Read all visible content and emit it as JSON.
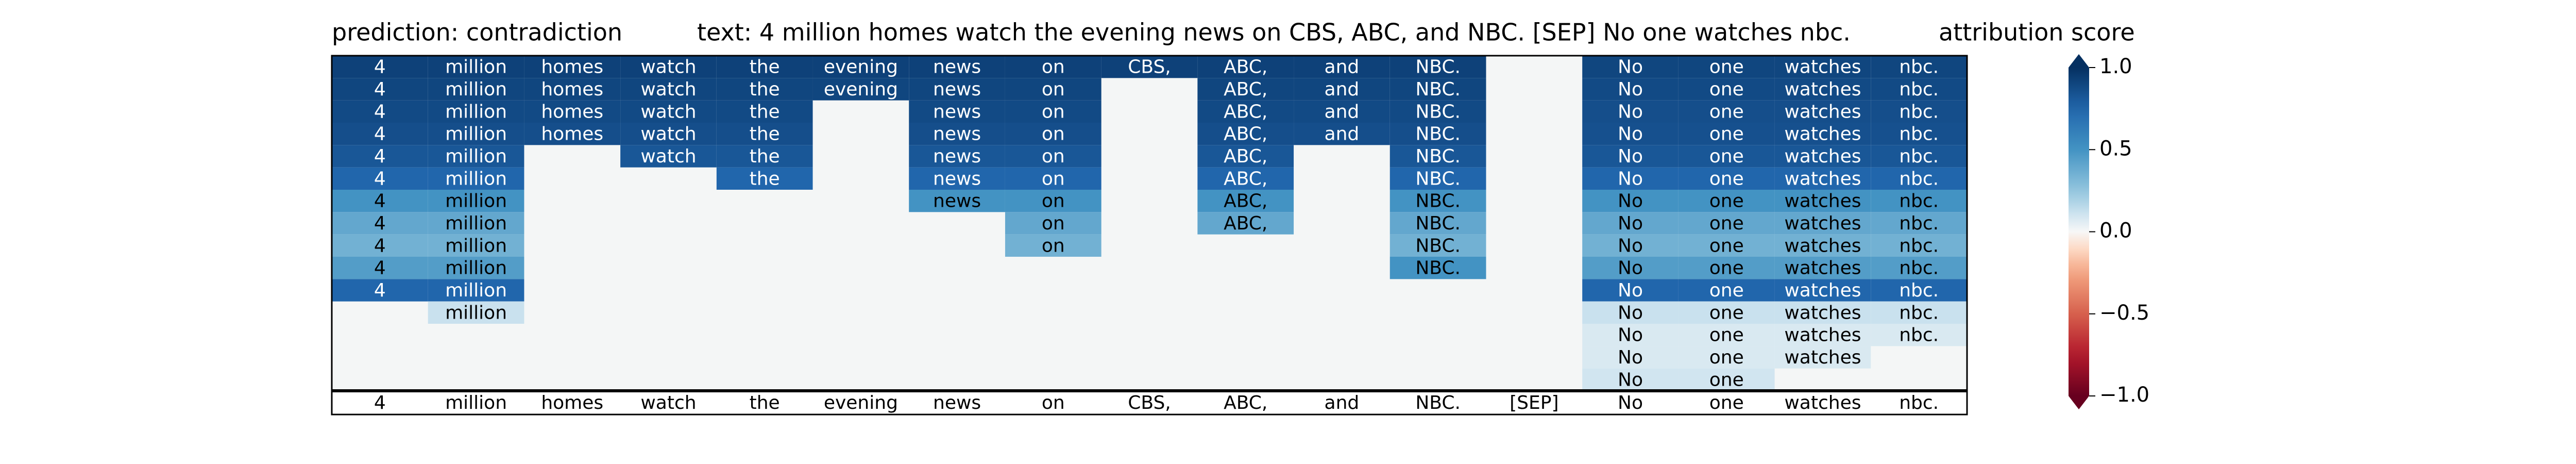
{
  "chart_data": {
    "type": "heatmap",
    "title_prediction": "prediction:  contradiction",
    "title_text": "text:  4 million homes watch the evening news on CBS, ABC, and NBC. [SEP] No one watches nbc.",
    "colorbar_label": "attribution score",
    "tokens": [
      "4",
      "million",
      "homes",
      "watch",
      "the",
      "evening",
      "news",
      "on",
      "CBS,",
      "ABC,",
      "and",
      "NBC.",
      "[SEP]",
      "No",
      "one",
      "watches",
      "nbc."
    ],
    "rows": [
      [
        0.92,
        0.92,
        0.92,
        0.92,
        0.92,
        0.92,
        0.92,
        0.92,
        0.92,
        0.92,
        0.92,
        0.92,
        null,
        0.9,
        0.9,
        0.9,
        0.9
      ],
      [
        0.9,
        0.9,
        0.9,
        0.9,
        0.9,
        0.9,
        0.9,
        0.9,
        null,
        0.9,
        0.9,
        0.9,
        null,
        0.88,
        0.88,
        0.88,
        0.88
      ],
      [
        0.88,
        0.88,
        0.88,
        0.88,
        0.88,
        null,
        0.88,
        0.88,
        null,
        0.88,
        0.88,
        0.88,
        null,
        0.86,
        0.86,
        0.86,
        0.86
      ],
      [
        0.86,
        0.86,
        0.86,
        0.86,
        0.86,
        null,
        0.86,
        0.86,
        null,
        0.86,
        0.86,
        0.86,
        null,
        0.85,
        0.85,
        0.85,
        0.85
      ],
      [
        0.82,
        0.82,
        null,
        0.82,
        0.82,
        null,
        0.82,
        0.82,
        null,
        0.82,
        null,
        0.82,
        null,
        0.82,
        0.82,
        0.82,
        0.82
      ],
      [
        0.75,
        0.75,
        null,
        null,
        0.75,
        null,
        0.75,
        0.75,
        null,
        0.75,
        null,
        0.75,
        null,
        0.75,
        0.75,
        0.75,
        0.75
      ],
      [
        0.5,
        0.5,
        null,
        null,
        null,
        null,
        0.5,
        0.5,
        null,
        0.5,
        null,
        0.5,
        null,
        0.5,
        0.5,
        0.5,
        0.5
      ],
      [
        0.4,
        0.4,
        null,
        null,
        null,
        null,
        null,
        0.4,
        null,
        0.4,
        null,
        0.4,
        null,
        0.4,
        0.4,
        0.4,
        0.4
      ],
      [
        0.35,
        0.35,
        null,
        null,
        null,
        null,
        null,
        0.35,
        null,
        null,
        null,
        0.35,
        null,
        0.35,
        0.35,
        0.35,
        0.35
      ],
      [
        0.45,
        0.45,
        null,
        null,
        null,
        null,
        null,
        null,
        null,
        null,
        null,
        0.5,
        null,
        0.45,
        0.45,
        0.45,
        0.45
      ],
      [
        0.75,
        0.75,
        null,
        null,
        null,
        null,
        null,
        null,
        null,
        null,
        null,
        null,
        null,
        0.75,
        0.75,
        0.75,
        0.75
      ],
      [
        null,
        0.12,
        null,
        null,
        null,
        null,
        null,
        null,
        null,
        null,
        null,
        null,
        null,
        0.12,
        0.12,
        0.12,
        0.12
      ],
      [
        null,
        null,
        null,
        null,
        null,
        null,
        null,
        null,
        null,
        null,
        null,
        null,
        null,
        0.08,
        0.08,
        0.08,
        0.08
      ],
      [
        null,
        null,
        null,
        null,
        null,
        null,
        null,
        null,
        null,
        null,
        null,
        null,
        null,
        0.08,
        0.08,
        0.08,
        null
      ],
      [
        null,
        null,
        null,
        null,
        null,
        null,
        null,
        null,
        null,
        null,
        null,
        null,
        null,
        0.1,
        0.1,
        null,
        null
      ]
    ],
    "clim": [
      -1,
      1
    ],
    "cticks": [
      {
        "value": 1,
        "label": "1.0"
      },
      {
        "value": 0.5,
        "label": "0.5"
      },
      {
        "value": 0,
        "label": "0.0"
      },
      {
        "value": -0.5,
        "label": "−0.5"
      },
      {
        "value": -1,
        "label": "−1.0"
      }
    ],
    "colormap": "RdBu"
  }
}
